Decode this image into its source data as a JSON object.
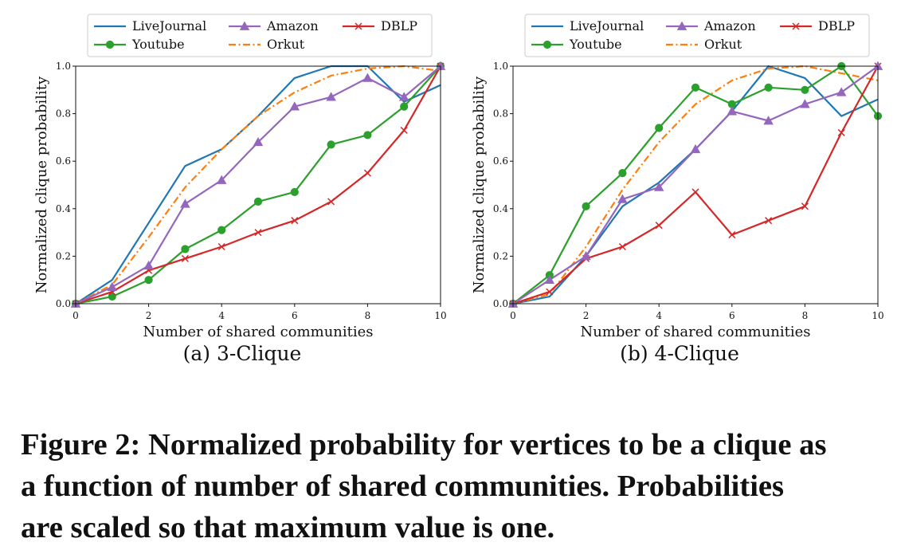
{
  "chart_data": [
    {
      "type": "line",
      "subcaption": "(a) 3-Clique",
      "xlabel": "Number of shared communities",
      "ylabel": "Normalized clique probability",
      "xlim": [
        0,
        10
      ],
      "ylim": [
        0,
        1.0
      ],
      "xticks": [
        "0",
        "2",
        "4",
        "6",
        "8",
        "10"
      ],
      "yticks": [
        "0.0",
        "0.2",
        "0.4",
        "0.6",
        "0.8",
        "1.0"
      ],
      "grid": false,
      "legend": "top, outside, 3 columns",
      "x": [
        0,
        1,
        2,
        3,
        4,
        5,
        6,
        7,
        8,
        9,
        10
      ],
      "series": [
        {
          "name": "LiveJournal",
          "color": "#1f77b4",
          "dash": "solid",
          "marker": "none",
          "values": [
            0.0,
            0.1,
            0.34,
            0.58,
            0.65,
            0.79,
            0.95,
            1.0,
            1.0,
            0.85,
            0.92
          ]
        },
        {
          "name": "Orkut",
          "color": "#ff7f0e",
          "dash": "dashdot",
          "marker": "none",
          "values": [
            0.0,
            0.08,
            0.28,
            0.49,
            0.65,
            0.79,
            0.89,
            0.96,
            0.99,
            1.0,
            0.98
          ]
        },
        {
          "name": "Youtube",
          "color": "#2ca02c",
          "dash": "solid",
          "marker": "circle",
          "values": [
            0.0,
            0.03,
            0.1,
            0.23,
            0.31,
            0.43,
            0.47,
            0.67,
            0.71,
            0.83,
            1.0
          ]
        },
        {
          "name": "DBLP",
          "color": "#d62728",
          "dash": "solid",
          "marker": "x",
          "values": [
            0.0,
            0.05,
            0.14,
            0.19,
            0.24,
            0.3,
            0.35,
            0.43,
            0.55,
            0.73,
            1.0
          ]
        },
        {
          "name": "Amazon",
          "color": "#9467bd",
          "dash": "solid",
          "marker": "triangle",
          "values": [
            0.0,
            0.07,
            0.16,
            0.42,
            0.52,
            0.68,
            0.83,
            0.87,
            0.95,
            0.87,
            1.0
          ]
        }
      ]
    },
    {
      "type": "line",
      "subcaption": "(b) 4-Clique",
      "xlabel": "Number of shared communities",
      "ylabel": "Normalized clique probability",
      "xlim": [
        0,
        10
      ],
      "ylim": [
        0,
        1.0
      ],
      "xticks": [
        "0",
        "2",
        "4",
        "6",
        "8",
        "10"
      ],
      "yticks": [
        "0.0",
        "0.2",
        "0.4",
        "0.6",
        "0.8",
        "1.0"
      ],
      "grid": false,
      "legend": "top, outside, 3 columns",
      "x": [
        0,
        1,
        2,
        3,
        4,
        5,
        6,
        7,
        8,
        9,
        10
      ],
      "series": [
        {
          "name": "LiveJournal",
          "color": "#1f77b4",
          "dash": "solid",
          "marker": "none",
          "values": [
            0.0,
            0.03,
            0.2,
            0.41,
            0.51,
            0.65,
            0.81,
            1.0,
            0.95,
            0.79,
            0.86
          ]
        },
        {
          "name": "Orkut",
          "color": "#ff7f0e",
          "dash": "dashdot",
          "marker": "none",
          "values": [
            0.0,
            0.04,
            0.24,
            0.48,
            0.68,
            0.84,
            0.94,
            0.99,
            1.0,
            0.97,
            0.94
          ]
        },
        {
          "name": "Youtube",
          "color": "#2ca02c",
          "dash": "solid",
          "marker": "circle",
          "values": [
            0.0,
            0.12,
            0.41,
            0.55,
            0.74,
            0.91,
            0.84,
            0.91,
            0.9,
            1.0,
            0.79
          ]
        },
        {
          "name": "DBLP",
          "color": "#d62728",
          "dash": "solid",
          "marker": "x",
          "values": [
            0.0,
            0.05,
            0.19,
            0.24,
            0.33,
            0.47,
            0.29,
            0.35,
            0.41,
            0.72,
            1.0
          ]
        },
        {
          "name": "Amazon",
          "color": "#9467bd",
          "dash": "solid",
          "marker": "triangle",
          "values": [
            0.0,
            0.1,
            0.2,
            0.44,
            0.49,
            0.65,
            0.81,
            0.77,
            0.84,
            0.89,
            1.0
          ]
        }
      ]
    }
  ],
  "caption": {
    "lines": [
      "Figure 2: Normalized probability for vertices to be a clique as",
      "a function of number of shared communities. Probabilities",
      "are scaled so that maximum value is one."
    ]
  }
}
